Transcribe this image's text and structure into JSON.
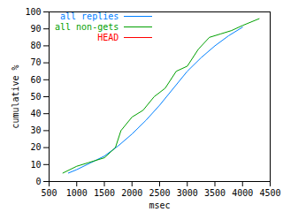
{
  "chart_data": {
    "type": "line",
    "xlabel": "msec",
    "ylabel": "cumulative %",
    "xlim": [
      500,
      4500
    ],
    "xticks": [
      500,
      1000,
      1500,
      2000,
      2500,
      3000,
      3500,
      4000,
      4500
    ],
    "ylim": [
      0,
      100
    ],
    "yticks": [
      0,
      10,
      20,
      30,
      40,
      50,
      60,
      70,
      80,
      90,
      100
    ],
    "grid": false,
    "legend": "top-left",
    "series": [
      {
        "name": "all replies",
        "color": "#0080ff",
        "x": [
          850,
          1000,
          1250,
          1500,
          1750,
          2000,
          2250,
          2500,
          2750,
          3000,
          3250,
          3500,
          3750,
          4000
        ],
        "values": [
          5,
          7,
          11,
          15,
          21,
          28,
          36,
          45,
          55,
          65,
          73,
          80,
          86,
          91
        ]
      },
      {
        "name": "all non-gets",
        "color": "#00a000",
        "x": [
          750,
          1000,
          1200,
          1500,
          1700,
          1800,
          2000,
          2200,
          2400,
          2600,
          2800,
          3000,
          3200,
          3400,
          3600,
          3800,
          4000,
          4300
        ],
        "values": [
          5,
          9,
          11,
          14,
          20,
          30,
          38,
          42,
          50,
          55,
          65,
          68,
          78,
          85,
          87,
          89,
          92,
          96
        ]
      },
      {
        "name": "HEAD",
        "color": "#ff0000",
        "x": [],
        "values": []
      }
    ]
  }
}
